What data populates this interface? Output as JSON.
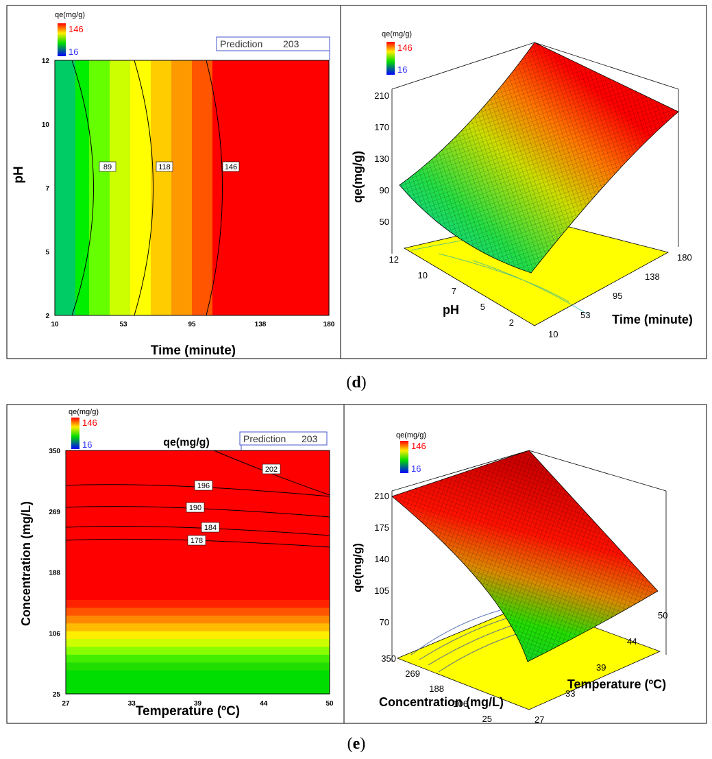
{
  "chart_data": [
    {
      "panel": "d",
      "type": "heatmap",
      "subtype": "contour",
      "title": "",
      "xlabel": "Time (minute)",
      "ylabel": "pH",
      "x_ticks": [
        "10",
        "53",
        "95",
        "138",
        "180"
      ],
      "y_ticks": [
        "2",
        "5",
        "7",
        "10",
        "12"
      ],
      "xlim": [
        10,
        180
      ],
      "ylim": [
        2,
        12
      ],
      "legend": {
        "title": "qe(mg/g)",
        "high": "146",
        "low": "16"
      },
      "prediction": {
        "label": "Prediction",
        "value": "203"
      },
      "contours": [
        {
          "label": "89",
          "value": 89
        },
        {
          "label": "118",
          "value": 118
        },
        {
          "label": "146",
          "value": 146
        }
      ],
      "colormap": [
        "#00cc66",
        "#00ee00",
        "#66ff00",
        "#ccff00",
        "#ffff00",
        "#ffcc00",
        "#ff9900",
        "#ff5500",
        "#ff0000"
      ]
    },
    {
      "panel": "d",
      "type": "surface",
      "zlabel": "qe(mg/g)",
      "xlabel": "Time (minute)",
      "ylabel": "pH",
      "z_ticks": [
        "210",
        "170",
        "130",
        "90",
        "50"
      ],
      "x_ticks": [
        "10",
        "53",
        "95",
        "138",
        "180"
      ],
      "y_ticks": [
        "12",
        "10",
        "7",
        "5",
        "2"
      ],
      "legend": {
        "title": "qe(mg/g)",
        "high": "146",
        "low": "16"
      }
    },
    {
      "panel": "e",
      "type": "heatmap",
      "subtype": "contour",
      "title": "qe(mg/g)",
      "xlabel": "Temperature (ºC)",
      "ylabel": "Concentration (mg/L)",
      "x_ticks": [
        "27",
        "33",
        "39",
        "44",
        "50"
      ],
      "y_ticks": [
        "25",
        "106",
        "188",
        "269",
        "350"
      ],
      "xlim": [
        27,
        50
      ],
      "ylim": [
        25,
        350
      ],
      "legend": {
        "title": "qe(mg/g)",
        "high": "146",
        "low": "16"
      },
      "prediction": {
        "label": "Prediction",
        "value": "203"
      },
      "contours": [
        {
          "label": "178",
          "value": 178
        },
        {
          "label": "184",
          "value": 184
        },
        {
          "label": "190",
          "value": 190
        },
        {
          "label": "196",
          "value": 196
        },
        {
          "label": "202",
          "value": 202
        }
      ],
      "colormap": [
        "#00dd00",
        "#44ff00",
        "#aaff00",
        "#ffff00",
        "#ffaa00",
        "#ff6600",
        "#ff0000"
      ]
    },
    {
      "panel": "e",
      "type": "surface",
      "zlabel": "qe(mg/g)",
      "xlabel": "Temperature (ºC)",
      "ylabel": "Concentration (mg/L)",
      "z_ticks": [
        "210",
        "175",
        "140",
        "105",
        "70"
      ],
      "x_ticks": [
        "27",
        "33",
        "39",
        "44",
        "50"
      ],
      "y_ticks": [
        "350",
        "269",
        "188",
        "106",
        "25"
      ],
      "legend": {
        "title": "qe(mg/g)",
        "high": "146",
        "low": "16"
      }
    }
  ],
  "captions": {
    "d": "d",
    "e": "e"
  },
  "colors": {
    "high": "#ff0000",
    "low_text": "#3333ff",
    "surface_floor": "#ffff00",
    "frame": "#000000"
  }
}
